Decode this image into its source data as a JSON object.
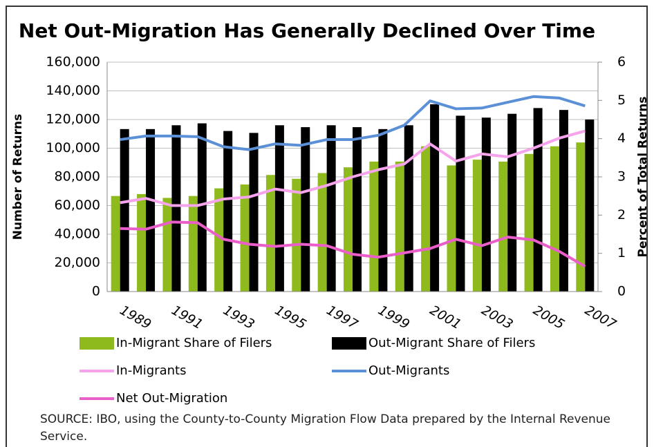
{
  "chart_data": {
    "type": "combo",
    "title": "Net Out-Migration Has Generally Declined Over Time",
    "y_label": "Number of Returns",
    "y2_label": "Percent of Total Returns",
    "source": "SOURCE:  IBO, using the County-to-County Migration Flow Data prepared by the Internal Revenue Service.",
    "categories": [
      "1989",
      null,
      "1991",
      null,
      "1993",
      null,
      "1995",
      null,
      "1997",
      null,
      "1999",
      null,
      "2001",
      null,
      "2003",
      null,
      "2005",
      null,
      "2007"
    ],
    "ylim": [
      0,
      160000
    ],
    "yticks": [
      0,
      {
        "value": 20000,
        "label": "20,000"
      },
      {
        "value": 40000,
        "label": "40,000"
      },
      {
        "value": 60000,
        "label": "60,000"
      },
      {
        "value": 80000,
        "label": "80,000"
      },
      {
        "value": 100000,
        "label": "100,000"
      },
      {
        "value": 120000,
        "label": "120,000"
      },
      {
        "value": 140000,
        "label": "140,000"
      },
      {
        "value": 160000,
        "label": "160,000"
      }
    ],
    "y2lim": [
      0,
      6
    ],
    "y2ticks": [
      0,
      1,
      2,
      3,
      4,
      5,
      6
    ],
    "grid": true,
    "series": [
      {
        "name": "In-Migrant Share of Filers",
        "type": "bar",
        "axis": "y2",
        "color": "#8fba1e",
        "values": [
          2.5,
          2.55,
          2.45,
          2.5,
          2.7,
          2.8,
          3.05,
          2.95,
          3.1,
          3.25,
          3.4,
          3.4,
          3.8,
          3.3,
          3.45,
          3.4,
          3.6,
          3.8,
          3.9
        ]
      },
      {
        "name": "Out-Migrant Share of Filers",
        "type": "bar",
        "axis": "y2",
        "color": "#000000",
        "values": [
          4.25,
          4.25,
          4.35,
          4.4,
          4.2,
          4.15,
          4.35,
          4.3,
          4.35,
          4.3,
          4.25,
          4.35,
          4.9,
          4.6,
          4.55,
          4.65,
          4.8,
          4.75,
          4.5
        ]
      },
      {
        "name": "In-Migrants",
        "type": "line",
        "color": "#f5a3ea",
        "values": [
          62000,
          65000,
          60000,
          60000,
          64500,
          66000,
          71500,
          69000,
          74000,
          80000,
          85000,
          89000,
          103000,
          91000,
          96000,
          94000,
          100000,
          107000,
          112000
        ]
      },
      {
        "name": "Out-Migrants",
        "type": "line",
        "color": "#5b8fd6",
        "values": [
          106000,
          108500,
          108500,
          108000,
          101000,
          99000,
          103000,
          102000,
          106000,
          106000,
          109000,
          116000,
          133000,
          127500,
          128000,
          132000,
          136000,
          135000,
          129500
        ]
      },
      {
        "name": "Net Out-Migration",
        "type": "line",
        "color": "#e95ec8",
        "values": [
          44000,
          43500,
          48500,
          48000,
          36500,
          33000,
          31500,
          33000,
          32000,
          26000,
          24000,
          27000,
          30000,
          36500,
          32000,
          38000,
          36000,
          28000,
          17500
        ]
      }
    ]
  }
}
